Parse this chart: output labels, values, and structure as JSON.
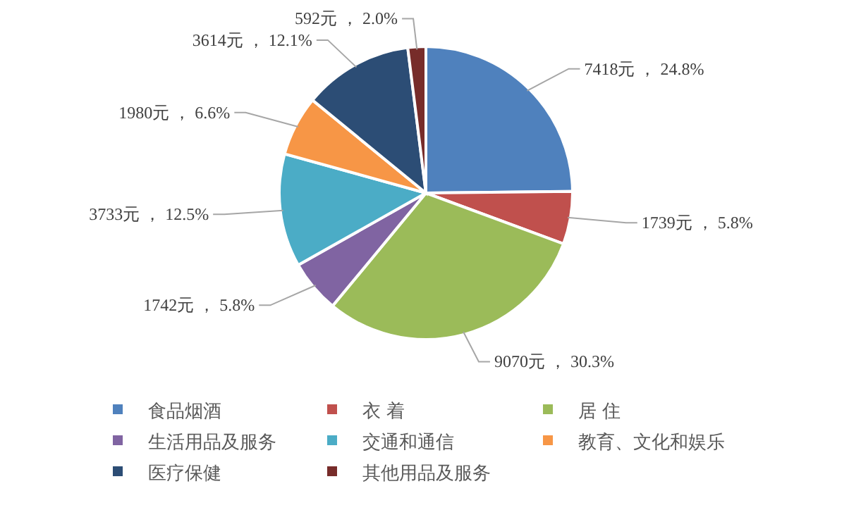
{
  "chart_data": {
    "type": "pie",
    "categories": [
      "食品烟酒",
      "衣 着",
      "居 住",
      "生活用品及服务",
      "交通和通信",
      "教育、文化和娱乐",
      "医疗保健",
      "其他用品及服务"
    ],
    "values": [
      7418,
      1739,
      9070,
      1742,
      3733,
      1980,
      3614,
      592
    ],
    "value_labels": [
      "7418元 ， 24.8%",
      "1739元 ， 5.8%",
      "9070元 ， 30.3%",
      "1742元 ， 5.8%",
      "3733元 ， 12.5%",
      "1980元 ， 6.6%",
      "3614元 ， 12.1%",
      "592元 ， 2.0%"
    ],
    "colors": [
      "#4f81bd",
      "#c0504d",
      "#9bbb59",
      "#8064a2",
      "#4bacc6",
      "#f79646",
      "#2c4d75",
      "#772c2a"
    ],
    "legend": "bottom"
  }
}
